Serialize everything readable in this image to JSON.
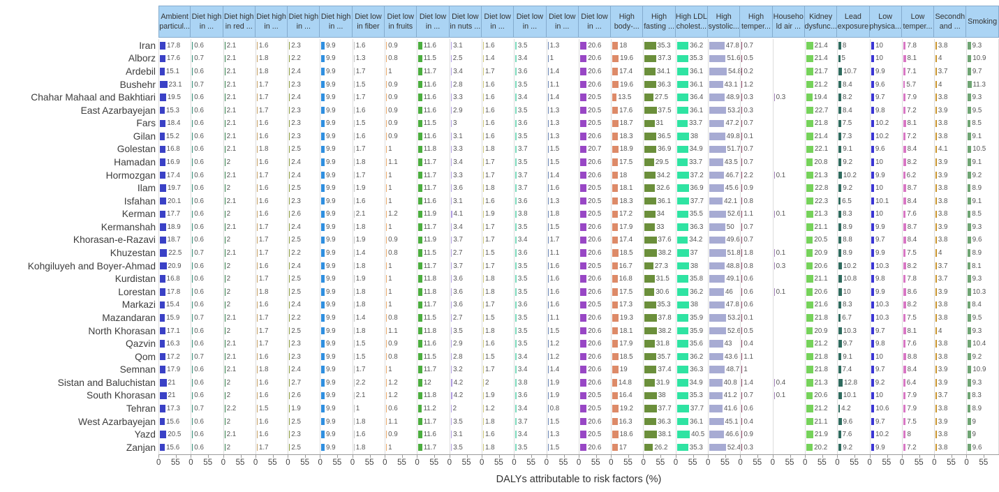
{
  "chart_data": {
    "type": "bar",
    "layout": "small-multiples-horizontal-bars",
    "title": "",
    "xlabel": "DALYs attributable to risk factors (%)",
    "ylabel": "",
    "xlim": [
      0,
      55
    ],
    "x_ticks": [
      "0",
      "55"
    ],
    "grid": false,
    "legend": "none",
    "header_bg": "#abd4f4",
    "columns": [
      {
        "label": "Ambient\nparticul...",
        "color": "#3a41c6"
      },
      {
        "label": "Diet high\nin ...",
        "color": "#2e8b74"
      },
      {
        "label": "Diet high\nin red ...",
        "color": "#2d7d46"
      },
      {
        "label": "Diet high\nin ...",
        "color": "#c8a165"
      },
      {
        "label": "Diet high\nin ...",
        "color": "#8a9a3c"
      },
      {
        "label": "Diet high\nin ...",
        "color": "#2f8fe0"
      },
      {
        "label": "Diet low\nin fiber",
        "color": "#bfbfbf"
      },
      {
        "label": "Diet low\nin fruits",
        "color": "#e8a868"
      },
      {
        "label": "Diet low\nin ...",
        "color": "#4cae3f"
      },
      {
        "label": "Diet low\nin nuts ...",
        "color": "#af9be0"
      },
      {
        "label": "Diet low\nin ...",
        "color": "#cdc575"
      },
      {
        "label": "Diet low\nin ...",
        "color": "#7cd9bc"
      },
      {
        "label": "Diet low\nin ...",
        "color": "#6b85b5"
      },
      {
        "label": "Diet low\nin ...",
        "color": "#9847c5"
      },
      {
        "label": "High\nbody-...",
        "color": "#dd8a68"
      },
      {
        "label": "High\nfasting ...",
        "color": "#6b8f3b"
      },
      {
        "label": "High LDL\ncholest...",
        "color": "#2fe3a2"
      },
      {
        "label": "High\nsystolic...",
        "color": "#a7abd3"
      },
      {
        "label": "High\ntemper...",
        "color": "#7d3455"
      },
      {
        "label": "Househo\nld air ...",
        "color": "#9e7bb5"
      },
      {
        "label": "Kidney\ndysfunc...",
        "color": "#76d25b"
      },
      {
        "label": "Lead\nexposure",
        "color": "#2f6b5e"
      },
      {
        "label": "Low\nphysica...",
        "color": "#3a35d5"
      },
      {
        "label": "Low\ntemper...",
        "color": "#d877c4"
      },
      {
        "label": "Secondh\nand ...",
        "color": "#c9952e"
      },
      {
        "label": "Smoking",
        "color": "#6fa573"
      }
    ],
    "rows": [
      "Iran",
      "Alborz",
      "Ardebil",
      "Bushehr",
      "Chahar Mahaal and Bakhtiari",
      "East Azarbayejan",
      "Fars",
      "Gilan",
      "Golestan",
      "Hamadan",
      "Hormozgan",
      "Ilam",
      "Isfahan",
      "Kerman",
      "Kermanshah",
      "Khorasan-e-Razavi",
      "Khuzestan",
      "Kohgiluyeh and Boyer-Ahmad",
      "Kurdistan",
      "Lorestan",
      "Markazi",
      "Mazandaran",
      "North Khorasan",
      "Qazvin",
      "Qom",
      "Semnan",
      "Sistan and Baluchistan",
      "South Khorasan",
      "Tehran",
      "West Azarbayejan",
      "Yazd",
      "Zanjan"
    ],
    "values": [
      [
        17.8,
        0.6,
        2.1,
        1.6,
        2.3,
        9.9,
        1.6,
        0.9,
        11.6,
        3.1,
        1.6,
        3.5,
        1.3,
        20.6,
        18,
        35.3,
        36.2,
        47.8,
        0.7,
        null,
        21.4,
        8,
        10,
        7.8,
        3.8,
        9.3
      ],
      [
        17.6,
        0.7,
        2.1,
        1.8,
        2.2,
        9.9,
        1.3,
        0.8,
        11.5,
        2.5,
        1.4,
        3.4,
        1,
        20.6,
        19.6,
        37.3,
        35.3,
        51.6,
        0.5,
        null,
        21.4,
        5,
        10,
        8.1,
        4,
        10.9
      ],
      [
        15.1,
        0.6,
        2.1,
        1.8,
        2.4,
        9.9,
        1.7,
        1,
        11.7,
        3.4,
        1.7,
        3.6,
        1.4,
        20.6,
        17.4,
        34.1,
        36.1,
        54.8,
        0.2,
        null,
        21.7,
        10.7,
        9.9,
        7.1,
        3.7,
        9.7
      ],
      [
        23.1,
        0.7,
        2.1,
        1.7,
        2.3,
        9.9,
        1.5,
        0.9,
        11.6,
        2.8,
        1.6,
        3.5,
        1.1,
        20.6,
        19.6,
        36.3,
        36.1,
        43.1,
        1.2,
        null,
        21.2,
        8.4,
        9.6,
        5.7,
        4,
        11.3
      ],
      [
        19.5,
        0.6,
        2.1,
        1.7,
        2.4,
        9.9,
        1.7,
        0.9,
        11.6,
        3.3,
        1.6,
        3.4,
        1.4,
        20.5,
        13.5,
        27.5,
        36.4,
        48.9,
        0.3,
        0.3,
        19.4,
        8.2,
        9.7,
        7.9,
        3.8,
        9.3
      ],
      [
        15.3,
        0.6,
        2.1,
        1.7,
        2.3,
        9.9,
        1.6,
        0.9,
        11.6,
        2.9,
        1.6,
        3.5,
        1.3,
        20.5,
        17.6,
        37.5,
        36.1,
        53.2,
        0.3,
        null,
        22.7,
        8.4,
        9.8,
        7.2,
        3.9,
        9.5
      ],
      [
        18.4,
        0.6,
        2.1,
        1.6,
        2.3,
        9.9,
        1.5,
        0.9,
        11.5,
        3,
        1.6,
        3.6,
        1.3,
        20.5,
        18.7,
        31,
        33.7,
        47.2,
        0.7,
        null,
        21.8,
        7.5,
        10.2,
        8.1,
        3.8,
        8.5
      ],
      [
        15.2,
        0.6,
        2.1,
        1.6,
        2.3,
        9.9,
        1.6,
        0.9,
        11.6,
        3.1,
        1.6,
        3.5,
        1.3,
        20.6,
        18.3,
        36.5,
        38,
        49.8,
        0.1,
        null,
        21.4,
        7.3,
        10.2,
        7.2,
        3.8,
        9.1
      ],
      [
        16.8,
        0.6,
        2.1,
        1.8,
        2.5,
        9.9,
        1.7,
        1,
        11.8,
        3.3,
        1.8,
        3.7,
        1.5,
        20.7,
        18.9,
        36.9,
        34.9,
        51.7,
        0.7,
        null,
        22.1,
        9.1,
        9.6,
        8.4,
        4.1,
        10.5
      ],
      [
        16.9,
        0.6,
        2,
        1.6,
        2.4,
        9.9,
        1.8,
        1.1,
        11.7,
        3.4,
        1.7,
        3.5,
        1.5,
        20.6,
        17.5,
        29.5,
        33.7,
        43.5,
        0.7,
        null,
        20.8,
        9.2,
        10,
        8.2,
        3.9,
        9.1
      ],
      [
        17.4,
        0.6,
        2.1,
        1.7,
        2.4,
        9.9,
        1.7,
        1,
        11.7,
        3.3,
        1.7,
        3.7,
        1.4,
        20.6,
        18,
        34.2,
        37.2,
        46.7,
        2.2,
        0.1,
        21.3,
        10.2,
        9.9,
        6.2,
        3.9,
        9.2
      ],
      [
        19.7,
        0.6,
        2,
        1.6,
        2.5,
        9.9,
        1.9,
        1,
        11.7,
        3.6,
        1.8,
        3.7,
        1.6,
        20.5,
        18.1,
        32.6,
        36.9,
        45.6,
        0.9,
        null,
        22.8,
        9.2,
        10,
        8.7,
        3.8,
        8.9
      ],
      [
        20.1,
        0.6,
        2.1,
        1.6,
        2.3,
        9.9,
        1.6,
        1,
        11.6,
        3.1,
        1.6,
        3.6,
        1.3,
        20.5,
        18.3,
        36.1,
        37.7,
        42.1,
        0.8,
        null,
        22.3,
        6.5,
        10.1,
        8.4,
        3.8,
        9.1
      ],
      [
        17.7,
        0.6,
        2,
        1.6,
        2.6,
        9.9,
        2.1,
        1.2,
        11.9,
        4.1,
        1.9,
        3.8,
        1.8,
        20.5,
        17.2,
        34,
        35.5,
        52.6,
        1.1,
        0.1,
        21.3,
        8.3,
        10,
        7.6,
        3.8,
        8.5
      ],
      [
        18.9,
        0.6,
        2.1,
        1.7,
        2.4,
        9.9,
        1.8,
        1,
        11.7,
        3.4,
        1.7,
        3.5,
        1.5,
        20.6,
        17.9,
        33,
        36.3,
        50,
        0.7,
        null,
        21.1,
        8.9,
        9.9,
        8.7,
        3.9,
        9.3
      ],
      [
        18.7,
        0.6,
        2,
        1.7,
        2.5,
        9.9,
        1.9,
        0.9,
        11.9,
        3.7,
        1.7,
        3.4,
        1.7,
        20.6,
        17.4,
        37.6,
        34.2,
        49.6,
        0.7,
        null,
        20.5,
        8.8,
        9.7,
        8.4,
        3.8,
        9.6
      ],
      [
        22.5,
        0.7,
        2.1,
        1.7,
        2.2,
        9.9,
        1.4,
        0.8,
        11.5,
        2.7,
        1.5,
        3.6,
        1.1,
        20.6,
        18.5,
        38.2,
        37,
        51.8,
        1.8,
        0.1,
        20.9,
        8.9,
        9.9,
        7.5,
        4,
        8.9
      ],
      [
        20.9,
        0.6,
        2,
        1.6,
        2.4,
        9.9,
        1.8,
        1,
        11.7,
        3.7,
        1.7,
        3.5,
        1.6,
        20.5,
        16.7,
        27.3,
        38,
        48.8,
        0.8,
        0.3,
        20.6,
        10.2,
        10.3,
        8.2,
        3.7,
        8.1
      ],
      [
        16.8,
        0.6,
        2,
        1.7,
        2.5,
        9.9,
        1.9,
        1,
        11.8,
        3.6,
        1.8,
        3.5,
        1.6,
        20.6,
        16.8,
        31.5,
        35.8,
        49.1,
        0.6,
        null,
        21.1,
        10.8,
        9.8,
        7.8,
        3.7,
        9.3
      ],
      [
        17.8,
        0.6,
        2,
        1.8,
        2.5,
        9.9,
        1.8,
        1,
        11.8,
        3.6,
        1.8,
        3.5,
        1.6,
        20.6,
        17.5,
        30.6,
        36.2,
        46,
        0.6,
        0.1,
        20.6,
        10,
        9.9,
        8.6,
        3.9,
        10.3
      ],
      [
        15.4,
        0.6,
        2,
        1.6,
        2.4,
        9.9,
        1.8,
        1,
        11.7,
        3.6,
        1.7,
        3.6,
        1.6,
        20.5,
        17.3,
        35.3,
        38,
        47.8,
        0.6,
        null,
        21.6,
        8.3,
        10.3,
        8.2,
        3.8,
        8.4
      ],
      [
        15.9,
        0.7,
        2.1,
        1.7,
        2.2,
        9.9,
        1.4,
        0.8,
        11.5,
        2.7,
        1.5,
        3.5,
        1.1,
        20.6,
        19.3,
        37.8,
        35.9,
        53.2,
        0.1,
        null,
        21.8,
        6.7,
        10.3,
        7.5,
        3.8,
        9.5
      ],
      [
        17.1,
        0.6,
        2,
        1.7,
        2.5,
        9.9,
        1.8,
        1.1,
        11.8,
        3.5,
        1.8,
        3.5,
        1.5,
        20.6,
        18.1,
        38.2,
        35.9,
        52.6,
        0.5,
        null,
        20.9,
        10.3,
        9.7,
        8.1,
        4,
        9.3
      ],
      [
        16.3,
        0.6,
        2.1,
        1.7,
        2.3,
        9.9,
        1.5,
        0.9,
        11.6,
        2.9,
        1.6,
        3.5,
        1.2,
        20.6,
        17.9,
        31.8,
        35.6,
        43,
        0.4,
        null,
        21.2,
        9.7,
        9.8,
        7.6,
        3.8,
        10.4
      ],
      [
        17.2,
        0.7,
        2.1,
        1.6,
        2.3,
        9.9,
        1.5,
        0.8,
        11.5,
        2.8,
        1.5,
        3.4,
        1.2,
        20.6,
        18.5,
        35.7,
        36.2,
        43.6,
        1.1,
        null,
        21.8,
        9.1,
        10,
        8.8,
        3.8,
        9.2
      ],
      [
        17.9,
        0.6,
        2.1,
        1.8,
        2.4,
        9.9,
        1.7,
        1,
        11.7,
        3.2,
        1.7,
        3.4,
        1.4,
        20.6,
        19,
        37.4,
        36.3,
        48.7,
        1,
        null,
        21.8,
        7.4,
        9.7,
        8.4,
        3.9,
        10.9
      ],
      [
        21,
        0.6,
        2,
        1.6,
        2.7,
        9.9,
        2.2,
        1.2,
        12,
        4.2,
        2,
        3.8,
        1.9,
        20.6,
        14.8,
        31.9,
        34.9,
        40.8,
        1.4,
        0.4,
        21.3,
        12.8,
        9.2,
        6.4,
        3.9,
        9.3
      ],
      [
        21,
        0.6,
        2,
        1.6,
        2.6,
        9.9,
        2.1,
        1.2,
        11.8,
        4.2,
        1.9,
        3.6,
        1.9,
        20.5,
        16.4,
        38,
        35.3,
        41.2,
        0.7,
        0.1,
        20.6,
        10.1,
        10,
        7.9,
        3.7,
        8.3
      ],
      [
        17.3,
        0.7,
        2.2,
        1.5,
        1.9,
        9.9,
        1,
        0.6,
        11.2,
        2,
        1.2,
        3.4,
        0.8,
        20.5,
        19.2,
        37.7,
        37.7,
        41.6,
        0.6,
        null,
        21.2,
        4.2,
        10.6,
        7.9,
        3.8,
        8.9
      ],
      [
        15.6,
        0.6,
        2,
        1.6,
        2.5,
        9.9,
        1.8,
        1.1,
        11.7,
        3.5,
        1.8,
        3.7,
        1.5,
        20.6,
        16.3,
        36.3,
        36.1,
        45.1,
        0.4,
        null,
        21.1,
        9.6,
        9.7,
        7.5,
        3.9,
        9
      ],
      [
        20.5,
        0.6,
        2.1,
        1.6,
        2.3,
        9.9,
        1.6,
        0.9,
        11.6,
        3.1,
        1.6,
        3.4,
        1.3,
        20.5,
        18.6,
        38.1,
        40.5,
        46.6,
        0.9,
        null,
        21.9,
        7.6,
        10.2,
        8,
        3.8,
        9
      ],
      [
        15.6,
        0.6,
        2,
        1.7,
        2.5,
        9.9,
        1.8,
        1,
        11.7,
        3.5,
        1.8,
        3.5,
        1.5,
        20.6,
        17,
        26.2,
        35.3,
        52.4,
        0.3,
        null,
        20.2,
        9.2,
        9.9,
        7.2,
        3.8,
        9.6
      ]
    ]
  }
}
